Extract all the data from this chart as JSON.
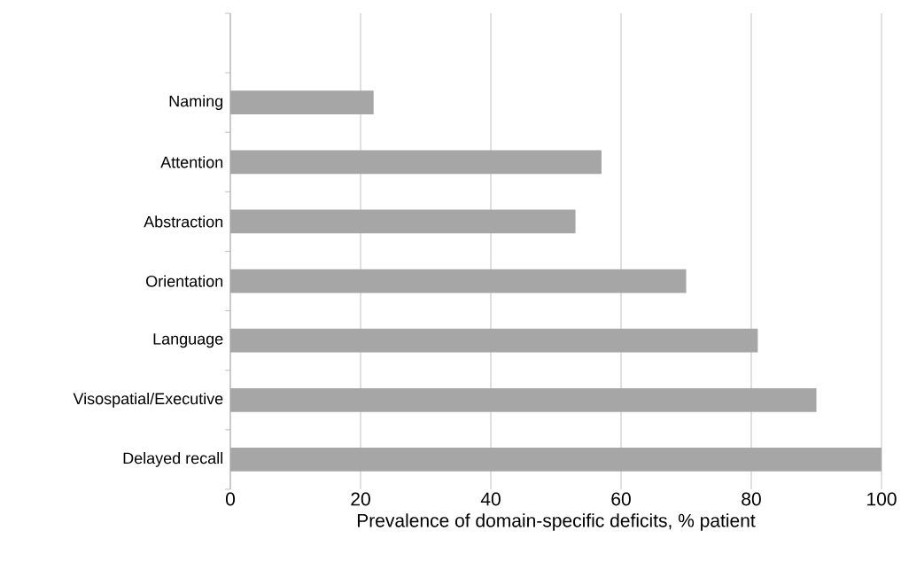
{
  "chart_data": {
    "type": "bar",
    "orientation": "horizontal",
    "xlabel": "Prevalence of domain-specific deficits, % patient",
    "categories": [
      null,
      "Naming",
      "Attention",
      "Abstraction",
      "Orientation",
      "Language",
      "Visospatial/Executive",
      "Delayed recall"
    ],
    "values": [
      null,
      22,
      57,
      53,
      70,
      81,
      90,
      100
    ],
    "color": "#a6a6a6",
    "xlim": [
      0,
      100
    ],
    "xticks": [
      0,
      20,
      40,
      60,
      80,
      100
    ],
    "grid": "x"
  }
}
